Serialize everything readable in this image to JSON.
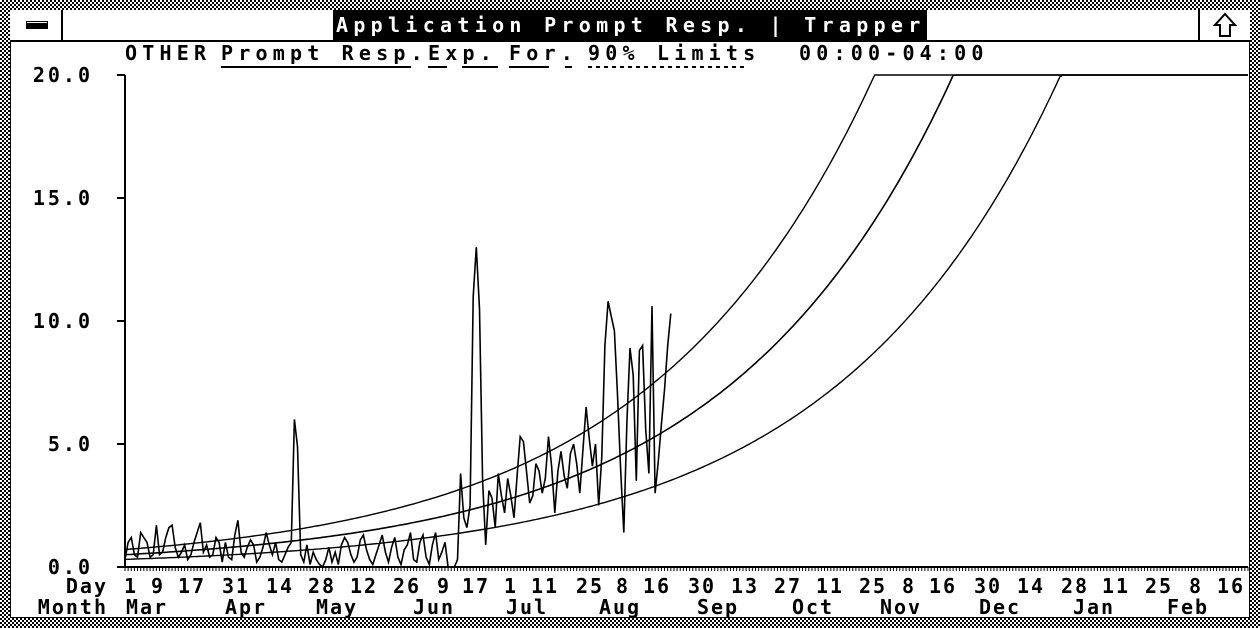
{
  "window": {
    "title": "Application Prompt Resp. | Trapper",
    "system_menu_icon": "minimize-bar-icon",
    "maximize_icon": "up-arrow-icon"
  },
  "header": {
    "category": "OTHER",
    "legend": [
      {
        "label": "Prompt Resp.",
        "style": "solid"
      },
      {
        "label": "Exp.",
        "style": "dashed"
      },
      {
        "label": "For.",
        "style": "long-dash"
      },
      {
        "label": "90% Limits",
        "style": "dotted"
      }
    ],
    "time_range": "00:00-04:00"
  },
  "chart_data": {
    "type": "line",
    "title": "OTHER Prompt Resp. Exp. For. 90% Limits 00:00-04:00",
    "ylim": [
      0,
      20
    ],
    "y_ticks": [
      "0.0",
      "5.0",
      "10.0",
      "15.0",
      "20.0"
    ],
    "x_start": "1 Mar",
    "x_span_days": 358,
    "x_row_labels": {
      "day": "Day",
      "month": "Month"
    },
    "day_labels": [
      "1",
      "9",
      "17",
      "31",
      "14",
      "28",
      "12",
      "26",
      "9",
      "17",
      "1",
      "11",
      "25",
      "8",
      "16",
      "30",
      "13",
      "27",
      "11",
      "25",
      "8",
      "16",
      "30",
      "14",
      "28",
      "11",
      "25",
      "8",
      "16"
    ],
    "month_labels": [
      "Mar",
      "Apr",
      "May",
      "Jun",
      "Jul",
      "Aug",
      "Sep",
      "Oct",
      "Nov",
      "Dec",
      "Jan",
      "Feb"
    ],
    "series": [
      {
        "name": "Prompt Resp.",
        "interval": "daily",
        "values": [
          0.3,
          1.0,
          1.2,
          0.5,
          0.4,
          1.4,
          1.2,
          1.0,
          0.4,
          0.5,
          1.7,
          0.5,
          0.6,
          1.2,
          1.6,
          1.7,
          0.8,
          0.4,
          0.6,
          0.9,
          0.3,
          0.5,
          1.0,
          1.4,
          1.8,
          0.6,
          0.9,
          0.4,
          0.5,
          1.2,
          1.0,
          0.2,
          1.0,
          0.4,
          0.3,
          1.3,
          1.9,
          0.6,
          0.4,
          0.8,
          1.1,
          0.9,
          0.2,
          0.4,
          0.8,
          1.4,
          0.9,
          0.5,
          1.0,
          0.3,
          0.2,
          0.5,
          0.8,
          1.0,
          6.0,
          4.9,
          0.5,
          0.2,
          0.9,
          0.1,
          0.6,
          0.3,
          0.1,
          0.0,
          0.3,
          0.8,
          0.2,
          0.6,
          0.1,
          0.9,
          1.2,
          1.0,
          0.5,
          0.2,
          0.4,
          1.1,
          1.3,
          0.7,
          0.3,
          0.1,
          0.5,
          0.9,
          1.3,
          0.6,
          0.2,
          0.8,
          1.2,
          0.4,
          0.1,
          0.7,
          0.9,
          1.4,
          0.3,
          0.2,
          1.0,
          1.3,
          0.4,
          0.1,
          0.9,
          1.4,
          0.3,
          0.6,
          1.0,
          0.0,
          0.0,
          0.0,
          0.3,
          3.8,
          2.0,
          1.6,
          2.5,
          11.0,
          13.0,
          10.5,
          3.5,
          0.9,
          3.1,
          2.8,
          1.6,
          3.8,
          2.9,
          2.2,
          3.6,
          2.9,
          2.0,
          3.7,
          5.3,
          5.1,
          3.9,
          2.6,
          2.9,
          4.2,
          3.9,
          3.0,
          3.6,
          5.3,
          4.1,
          2.2,
          3.9,
          4.7,
          3.7,
          3.2,
          4.6,
          5.0,
          4.2,
          3.0,
          4.8,
          6.5,
          5.2,
          4.1,
          5.0,
          2.5,
          4.5,
          9.0,
          10.8,
          10.2,
          9.6,
          7.0,
          4.0,
          1.4,
          5.9,
          8.9,
          7.8,
          3.5,
          8.8,
          9.0,
          5.6,
          3.8,
          10.6,
          3.0,
          4.3,
          5.8,
          7.2,
          9.0,
          10.3
        ]
      },
      {
        "name": "For.",
        "model": "exponential",
        "start_value": 0.5,
        "daily_growth": 0.01397
      },
      {
        "name": "90% Limits",
        "model": "exponential",
        "start_value": 0.71,
        "daily_growth": 0.01397,
        "bound": "upper"
      },
      {
        "name": "90% Limits",
        "model": "exponential",
        "start_value": 0.31,
        "daily_growth": 0.01397,
        "bound": "lower"
      }
    ],
    "grid": false,
    "legend_placement": "top"
  }
}
